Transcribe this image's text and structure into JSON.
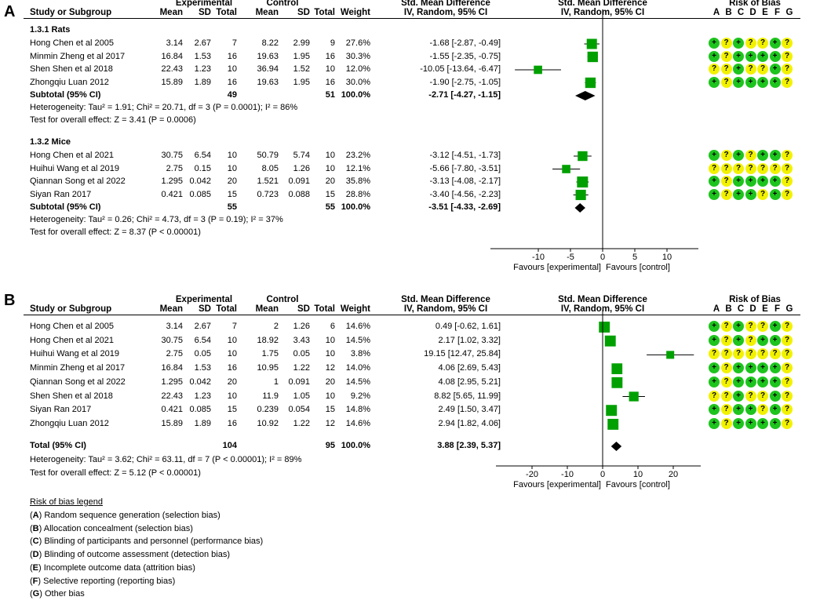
{
  "panelA": {
    "label": "A",
    "headers": {
      "study": "Study or Subgroup",
      "experimental": "Experimental",
      "control": "Control",
      "mean": "Mean",
      "sd": "SD",
      "total": "Total",
      "weight": "Weight",
      "smd": "Std. Mean Difference",
      "smd_sub": "IV, Random, 95% CI",
      "plot_title": "Std. Mean Difference",
      "plot_sub": "IV, Random, 95% CI",
      "rob": "Risk of Bias",
      "rob_letters": [
        "A",
        "B",
        "C",
        "D",
        "E",
        "F",
        "G"
      ]
    },
    "subgroups": [
      {
        "name": "1.3.1 Rats",
        "studies": [
          {
            "study": "Hong Chen et al 2005",
            "e_mean": "3.14",
            "e_sd": "2.67",
            "e_total": "7",
            "c_mean": "8.22",
            "c_sd": "2.99",
            "c_total": "9",
            "weight": "27.6%",
            "ci": "-1.68 [-2.87, -0.49]",
            "smd": -1.68,
            "lo": -2.87,
            "hi": -0.49,
            "rob": [
              "+",
              "?",
              "+",
              "?",
              "?",
              "+",
              "?"
            ]
          },
          {
            "study": "Minmin Zheng et al 2017",
            "e_mean": "16.84",
            "e_sd": "1.53",
            "e_total": "16",
            "c_mean": "19.63",
            "c_sd": "1.95",
            "c_total": "16",
            "weight": "30.3%",
            "ci": "-1.55 [-2.35, -0.75]",
            "smd": -1.55,
            "lo": -2.35,
            "hi": -0.75,
            "rob": [
              "+",
              "?",
              "+",
              "+",
              "+",
              "+",
              "?"
            ]
          },
          {
            "study": "Shen Shen et al 2018",
            "e_mean": "22.43",
            "e_sd": "1.23",
            "e_total": "10",
            "c_mean": "36.94",
            "c_sd": "1.52",
            "c_total": "10",
            "weight": "12.0%",
            "ci": "-10.05 [-13.64, -6.47]",
            "smd": -10.05,
            "lo": -13.64,
            "hi": -6.47,
            "rob": [
              "?",
              "?",
              "+",
              "?",
              "?",
              "+",
              "?"
            ]
          },
          {
            "study": "Zhongqiu Luan 2012",
            "e_mean": "15.89",
            "e_sd": "1.89",
            "e_total": "16",
            "c_mean": "19.63",
            "c_sd": "1.95",
            "c_total": "16",
            "weight": "30.0%",
            "ci": "-1.90 [-2.75, -1.05]",
            "smd": -1.9,
            "lo": -2.75,
            "hi": -1.05,
            "rob": [
              "+",
              "?",
              "+",
              "+",
              "+",
              "+",
              "?"
            ]
          }
        ],
        "subtotal": {
          "label": "Subtotal (95% CI)",
          "e_total": "49",
          "c_total": "51",
          "weight": "100.0%",
          "ci": "-2.71 [-4.27, -1.15]",
          "smd": -2.71,
          "lo": -4.27,
          "hi": -1.15
        },
        "heterogeneity": "Heterogeneity: Tau² = 1.91; Chi² = 20.71, df = 3 (P = 0.0001); I² = 86%",
        "overall": "Test for overall effect: Z = 3.41 (P = 0.0006)"
      },
      {
        "name": "1.3.2 Mice",
        "studies": [
          {
            "study": "Hong Chen et al 2021",
            "e_mean": "30.75",
            "e_sd": "6.54",
            "e_total": "10",
            "c_mean": "50.79",
            "c_sd": "5.74",
            "c_total": "10",
            "weight": "23.2%",
            "ci": "-3.12 [-4.51, -1.73]",
            "smd": -3.12,
            "lo": -4.51,
            "hi": -1.73,
            "rob": [
              "+",
              "?",
              "+",
              "?",
              "+",
              "+",
              "?"
            ]
          },
          {
            "study": "Huihui Wang et al 2019",
            "e_mean": "2.75",
            "e_sd": "0.15",
            "e_total": "10",
            "c_mean": "8.05",
            "c_sd": "1.26",
            "c_total": "10",
            "weight": "12.1%",
            "ci": "-5.66 [-7.80, -3.51]",
            "smd": -5.66,
            "lo": -7.8,
            "hi": -3.51,
            "rob": [
              "?",
              "?",
              "?",
              "?",
              "?",
              "?",
              "?"
            ]
          },
          {
            "study": "Qiannan Song et al 2022",
            "e_mean": "1.295",
            "e_sd": "0.042",
            "e_total": "20",
            "c_mean": "1.521",
            "c_sd": "0.091",
            "c_total": "20",
            "weight": "35.8%",
            "ci": "-3.13 [-4.08, -2.17]",
            "smd": -3.13,
            "lo": -4.08,
            "hi": -2.17,
            "rob": [
              "+",
              "?",
              "+",
              "+",
              "+",
              "+",
              "?"
            ]
          },
          {
            "study": "Siyan Ran 2017",
            "e_mean": "0.421",
            "e_sd": "0.085",
            "e_total": "15",
            "c_mean": "0.723",
            "c_sd": "0.088",
            "c_total": "15",
            "weight": "28.8%",
            "ci": "-3.40 [-4.56, -2.23]",
            "smd": -3.4,
            "lo": -4.56,
            "hi": -2.23,
            "rob": [
              "+",
              "?",
              "+",
              "+",
              "?",
              "+",
              "?"
            ]
          }
        ],
        "subtotal": {
          "label": "Subtotal (95% CI)",
          "e_total": "55",
          "c_total": "55",
          "weight": "100.0%",
          "ci": "-3.51 [-4.33, -2.69]",
          "smd": -3.51,
          "lo": -4.33,
          "hi": -2.69
        },
        "heterogeneity": "Heterogeneity: Tau² = 0.26; Chi² = 4.73, df = 3 (P = 0.19); I² = 37%",
        "overall": "Test for overall effect: Z = 8.37 (P < 0.00001)"
      }
    ],
    "axis": {
      "ticks": [
        "-10",
        "-5",
        "0",
        "5",
        "10"
      ],
      "tick_values": [
        -10,
        -5,
        0,
        5,
        10
      ],
      "favours_left": "Favours [experimental]",
      "favours_right": "Favours [control]"
    }
  },
  "panelB": {
    "label": "B",
    "studies": [
      {
        "study": "Hong Chen et al 2005",
        "e_mean": "3.14",
        "e_sd": "2.67",
        "e_total": "7",
        "c_mean": "2",
        "c_sd": "1.26",
        "c_total": "6",
        "weight": "14.6%",
        "ci": "0.49 [-0.62, 1.61]",
        "smd": 0.49,
        "lo": -0.62,
        "hi": 1.61,
        "rob": [
          "+",
          "?",
          "+",
          "?",
          "?",
          "+",
          "?"
        ]
      },
      {
        "study": "Hong Chen et al 2021",
        "e_mean": "30.75",
        "e_sd": "6.54",
        "e_total": "10",
        "c_mean": "18.92",
        "c_sd": "3.43",
        "c_total": "10",
        "weight": "14.5%",
        "ci": "2.17 [1.02, 3.32]",
        "smd": 2.17,
        "lo": 1.02,
        "hi": 3.32,
        "rob": [
          "+",
          "?",
          "+",
          "?",
          "+",
          "+",
          "?"
        ]
      },
      {
        "study": "Huihui Wang et al 2019",
        "e_mean": "2.75",
        "e_sd": "0.05",
        "e_total": "10",
        "c_mean": "1.75",
        "c_sd": "0.05",
        "c_total": "10",
        "weight": "3.8%",
        "ci": "19.15 [12.47, 25.84]",
        "smd": 19.15,
        "lo": 12.47,
        "hi": 25.84,
        "rob": [
          "?",
          "?",
          "?",
          "?",
          "?",
          "?",
          "?"
        ]
      },
      {
        "study": "Minmin Zheng et al 2017",
        "e_mean": "16.84",
        "e_sd": "1.53",
        "e_total": "16",
        "c_mean": "10.95",
        "c_sd": "1.22",
        "c_total": "12",
        "weight": "14.0%",
        "ci": "4.06 [2.69, 5.43]",
        "smd": 4.06,
        "lo": 2.69,
        "hi": 5.43,
        "rob": [
          "+",
          "?",
          "+",
          "+",
          "+",
          "+",
          "?"
        ]
      },
      {
        "study": "Qiannan Song et al 2022",
        "e_mean": "1.295",
        "e_sd": "0.042",
        "e_total": "20",
        "c_mean": "1",
        "c_sd": "0.091",
        "c_total": "20",
        "weight": "14.5%",
        "ci": "4.08 [2.95, 5.21]",
        "smd": 4.08,
        "lo": 2.95,
        "hi": 5.21,
        "rob": [
          "+",
          "?",
          "+",
          "+",
          "+",
          "+",
          "?"
        ]
      },
      {
        "study": "Shen Shen et al 2018",
        "e_mean": "22.43",
        "e_sd": "1.23",
        "e_total": "10",
        "c_mean": "11.9",
        "c_sd": "1.05",
        "c_total": "10",
        "weight": "9.2%",
        "ci": "8.82 [5.65, 11.99]",
        "smd": 8.82,
        "lo": 5.65,
        "hi": 11.99,
        "rob": [
          "?",
          "?",
          "+",
          "?",
          "?",
          "+",
          "?"
        ]
      },
      {
        "study": "Siyan Ran 2017",
        "e_mean": "0.421",
        "e_sd": "0.085",
        "e_total": "15",
        "c_mean": "0.239",
        "c_sd": "0.054",
        "c_total": "15",
        "weight": "14.8%",
        "ci": "2.49 [1.50, 3.47]",
        "smd": 2.49,
        "lo": 1.5,
        "hi": 3.47,
        "rob": [
          "+",
          "?",
          "+",
          "+",
          "?",
          "+",
          "?"
        ]
      },
      {
        "study": "Zhongqiu Luan 2012",
        "e_mean": "15.89",
        "e_sd": "1.89",
        "e_total": "16",
        "c_mean": "10.92",
        "c_sd": "1.22",
        "c_total": "12",
        "weight": "14.6%",
        "ci": "2.94 [1.82, 4.06]",
        "smd": 2.94,
        "lo": 1.82,
        "hi": 4.06,
        "rob": [
          "+",
          "?",
          "+",
          "+",
          "+",
          "+",
          "?"
        ]
      }
    ],
    "total": {
      "label": "Total (95% CI)",
      "e_total": "104",
      "c_total": "95",
      "weight": "100.0%",
      "ci": "3.88 [2.39, 5.37]",
      "smd": 3.88,
      "lo": 2.39,
      "hi": 5.37
    },
    "heterogeneity": "Heterogeneity: Tau² = 3.62; Chi² = 63.11, df = 7 (P < 0.00001); I² = 89%",
    "overall": "Test for overall effect: Z = 5.12 (P < 0.00001)",
    "axis": {
      "ticks": [
        "-20",
        "-10",
        "0",
        "10",
        "20"
      ],
      "tick_values": [
        -20,
        -10,
        0,
        10,
        20
      ],
      "favours_left": "Favours [experimental]",
      "favours_right": "Favours [control]"
    }
  },
  "legend": {
    "title": "Risk of bias legend",
    "items": [
      {
        "key": "A",
        "text": "Random sequence generation (selection bias)"
      },
      {
        "key": "B",
        "text": "Allocation concealment (selection bias)"
      },
      {
        "key": "C",
        "text": "Blinding of participants and personnel (performance bias)"
      },
      {
        "key": "D",
        "text": "Blinding of outcome assessment (detection bias)"
      },
      {
        "key": "E",
        "text": "Incomplete outcome data (attrition bias)"
      },
      {
        "key": "F",
        "text": "Selective reporting (reporting bias)"
      },
      {
        "key": "G",
        "text": "Other bias"
      }
    ]
  },
  "colors": {
    "marker": "#00a000",
    "low_risk": "#1ec41e",
    "unclear_risk": "#f2f200",
    "diamond": "#000000"
  },
  "chart_data": [
    {
      "type": "forest",
      "title": "Std. Mean Difference IV, Random, 95% CI (A)",
      "xlim": [
        -15,
        15
      ],
      "xlabel": "Favours [experimental] | Favours [control]",
      "series": [
        {
          "name": "1.3.1 Rats",
          "points": [
            {
              "label": "Hong Chen et al 2005",
              "est": -1.68,
              "lo": -2.87,
              "hi": -0.49
            },
            {
              "label": "Minmin Zheng et al 2017",
              "est": -1.55,
              "lo": -2.35,
              "hi": -0.75
            },
            {
              "label": "Shen Shen et al 2018",
              "est": -10.05,
              "lo": -13.64,
              "hi": -6.47
            },
            {
              "label": "Zhongqiu Luan 2012",
              "est": -1.9,
              "lo": -2.75,
              "hi": -1.05
            }
          ],
          "pooled": {
            "est": -2.71,
            "lo": -4.27,
            "hi": -1.15
          }
        },
        {
          "name": "1.3.2 Mice",
          "points": [
            {
              "label": "Hong Chen et al 2021",
              "est": -3.12,
              "lo": -4.51,
              "hi": -1.73
            },
            {
              "label": "Huihui Wang et al 2019",
              "est": -5.66,
              "lo": -7.8,
              "hi": -3.51
            },
            {
              "label": "Qiannan Song et al 2022",
              "est": -3.13,
              "lo": -4.08,
              "hi": -2.17
            },
            {
              "label": "Siyan Ran 2017",
              "est": -3.4,
              "lo": -4.56,
              "hi": -2.23
            }
          ],
          "pooled": {
            "est": -3.51,
            "lo": -4.33,
            "hi": -2.69
          }
        }
      ]
    },
    {
      "type": "forest",
      "title": "Std. Mean Difference IV, Random, 95% CI (B)",
      "xlim": [
        -30,
        30
      ],
      "xlabel": "Favours [experimental] | Favours [control]",
      "series": [
        {
          "name": "All",
          "points": [
            {
              "label": "Hong Chen et al 2005",
              "est": 0.49,
              "lo": -0.62,
              "hi": 1.61
            },
            {
              "label": "Hong Chen et al 2021",
              "est": 2.17,
              "lo": 1.02,
              "hi": 3.32
            },
            {
              "label": "Huihui Wang et al 2019",
              "est": 19.15,
              "lo": 12.47,
              "hi": 25.84
            },
            {
              "label": "Minmin Zheng et al 2017",
              "est": 4.06,
              "lo": 2.69,
              "hi": 5.43
            },
            {
              "label": "Qiannan Song et al 2022",
              "est": 4.08,
              "lo": 2.95,
              "hi": 5.21
            },
            {
              "label": "Shen Shen et al 2018",
              "est": 8.82,
              "lo": 5.65,
              "hi": 11.99
            },
            {
              "label": "Siyan Ran 2017",
              "est": 2.49,
              "lo": 1.5,
              "hi": 3.47
            },
            {
              "label": "Zhongqiu Luan 2012",
              "est": 2.94,
              "lo": 1.82,
              "hi": 4.06
            }
          ],
          "pooled": {
            "est": 3.88,
            "lo": 2.39,
            "hi": 5.37
          }
        }
      ]
    }
  ]
}
